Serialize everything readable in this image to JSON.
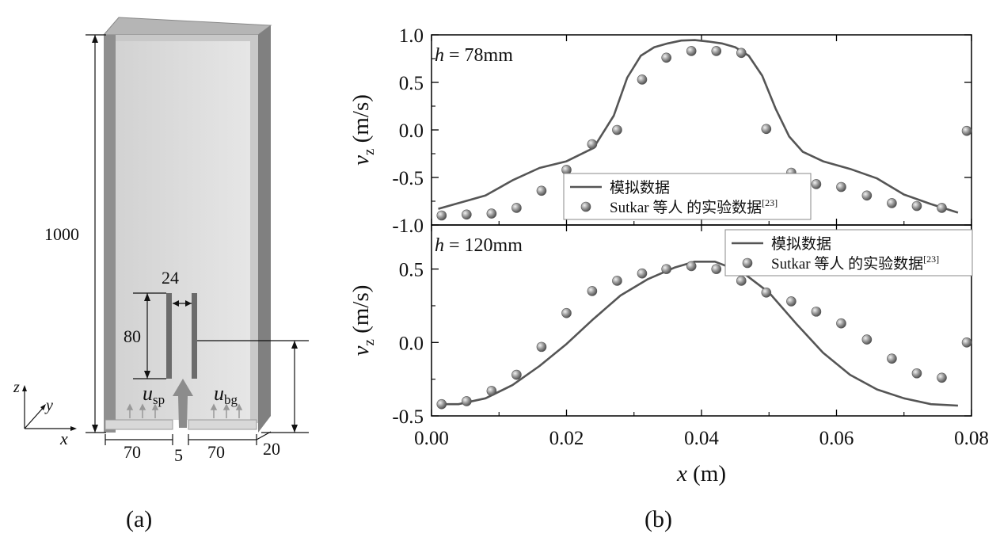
{
  "panel_a": {
    "label": "(a)",
    "dimensions": {
      "height": "1000",
      "baffle_gap": "24",
      "baffle_height": "80",
      "left_width": "70",
      "nozzle_width": "5",
      "right_width": "70",
      "depth": "20"
    },
    "velocity_labels": {
      "sparger": "u",
      "sparger_sub": "sp",
      "background": "u",
      "background_sub": "bg"
    },
    "axes": {
      "x": "x",
      "y": "y",
      "z": "z"
    }
  },
  "panel_b": {
    "label": "(b)"
  },
  "legend": {
    "simulation": "模拟数据",
    "experiment": "Sutkar 等人 的实验数据",
    "ref": "[23]"
  },
  "colors": {
    "line": "#555555",
    "marker": "#777777",
    "frame": "#000000"
  },
  "chart_data": [
    {
      "type": "line",
      "annotation": {
        "var": "h",
        "text": " = 78mm"
      },
      "ylabel": {
        "var": "v",
        "sub": "z",
        "unit": " (m/s)"
      },
      "ylim": [
        -1.0,
        1.0
      ],
      "yticks": [
        "1.0",
        "0.5",
        "0.0",
        "-0.5",
        "-1.0"
      ],
      "ytick_values": [
        1.0,
        0.5,
        0.0,
        -0.5,
        -1.0
      ],
      "xlim": [
        0,
        0.08
      ],
      "legend_position": "bottom-center",
      "series": [
        {
          "name": "模拟数据",
          "kind": "line",
          "x": [
            0.001,
            0.004,
            0.008,
            0.012,
            0.016,
            0.02,
            0.024,
            0.027,
            0.029,
            0.031,
            0.033,
            0.035,
            0.037,
            0.039,
            0.041,
            0.043,
            0.045,
            0.047,
            0.049,
            0.051,
            0.053,
            0.055,
            0.058,
            0.062,
            0.066,
            0.07,
            0.074,
            0.078
          ],
          "y": [
            -0.83,
            -0.77,
            -0.69,
            -0.53,
            -0.4,
            -0.33,
            -0.19,
            0.15,
            0.55,
            0.78,
            0.87,
            0.91,
            0.94,
            0.945,
            0.93,
            0.91,
            0.87,
            0.78,
            0.57,
            0.22,
            -0.07,
            -0.23,
            -0.33,
            -0.41,
            -0.51,
            -0.68,
            -0.78,
            -0.87
          ]
        },
        {
          "name": "Sutkar 等人 的实验数据",
          "kind": "scatter",
          "x": [
            0.0015,
            0.0052,
            0.0089,
            0.0126,
            0.0163,
            0.02,
            0.0238,
            0.0275,
            0.0312,
            0.0348,
            0.0385,
            0.0422,
            0.0459,
            0.0496,
            0.0533,
            0.057,
            0.0607,
            0.0645,
            0.0682,
            0.0719,
            0.0756,
            0.0793
          ],
          "y": [
            -0.9,
            -0.89,
            -0.88,
            -0.82,
            -0.64,
            -0.42,
            -0.15,
            0.0,
            0.53,
            0.76,
            0.83,
            0.83,
            0.81,
            0.01,
            -0.45,
            -0.57,
            -0.6,
            -0.69,
            -0.77,
            -0.8,
            -0.82,
            -0.01
          ]
        }
      ]
    },
    {
      "type": "line",
      "annotation": {
        "var": "h",
        "text": " = 120mm"
      },
      "ylabel": {
        "var": "v",
        "sub": "z",
        "unit": " (m/s)"
      },
      "ylim": [
        -0.5,
        0.8
      ],
      "yticks": [
        "0.5",
        "0.0",
        "-0.5"
      ],
      "ytick_values": [
        0.5,
        0.0,
        -0.5
      ],
      "xlim": [
        0,
        0.08
      ],
      "xticks": [
        "0.00",
        "0.02",
        "0.04",
        "0.06",
        "0.08"
      ],
      "xtick_values": [
        0.0,
        0.02,
        0.04,
        0.06,
        0.08
      ],
      "xlabel": {
        "var": "x",
        "unit": " (m)"
      },
      "legend_position": "top-right",
      "series": [
        {
          "name": "模拟数据",
          "kind": "line",
          "x": [
            0.001,
            0.004,
            0.008,
            0.012,
            0.016,
            0.02,
            0.024,
            0.028,
            0.032,
            0.036,
            0.039,
            0.042,
            0.046,
            0.05,
            0.054,
            0.058,
            0.062,
            0.066,
            0.07,
            0.074,
            0.078
          ],
          "y": [
            -0.42,
            -0.42,
            -0.38,
            -0.29,
            -0.16,
            -0.01,
            0.16,
            0.32,
            0.43,
            0.51,
            0.55,
            0.55,
            0.48,
            0.34,
            0.13,
            -0.07,
            -0.22,
            -0.32,
            -0.38,
            -0.42,
            -0.43
          ]
        },
        {
          "name": "Sutkar 等人 的实验数据",
          "kind": "scatter",
          "x": [
            0.0015,
            0.0052,
            0.0089,
            0.0126,
            0.0163,
            0.02,
            0.0238,
            0.0275,
            0.0312,
            0.0348,
            0.0385,
            0.0422,
            0.0459,
            0.0496,
            0.0533,
            0.057,
            0.0607,
            0.0645,
            0.0682,
            0.0719,
            0.0756,
            0.0793
          ],
          "y": [
            -0.42,
            -0.4,
            -0.33,
            -0.22,
            -0.03,
            0.2,
            0.35,
            0.42,
            0.47,
            0.5,
            0.52,
            0.5,
            0.42,
            0.34,
            0.28,
            0.21,
            0.13,
            0.02,
            -0.11,
            -0.21,
            -0.24,
            0.0
          ]
        }
      ]
    }
  ]
}
